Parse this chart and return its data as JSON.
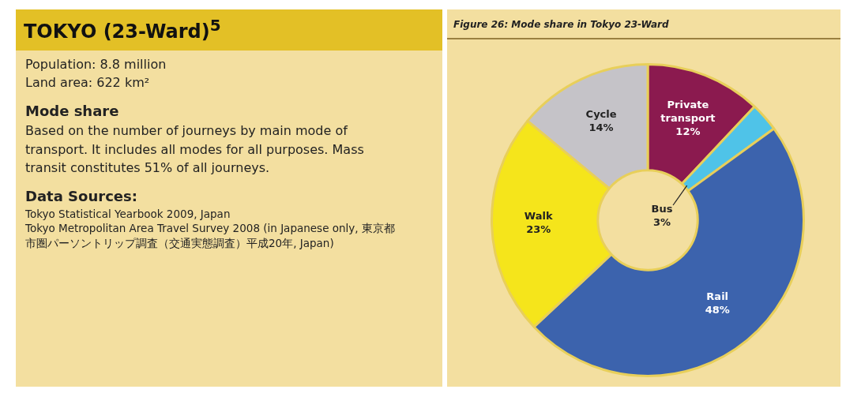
{
  "chart_data": [
    {
      "type": "other",
      "title": "TOKYO (23-Ward)$^{5}$",
      "annotations": [
        "Population: 8.8  million",
        "Land area: 622 km²",
        "Mode share",
        "Based on the number of journeys by main mode of transport. It includes all modes for all purposes. Mass transit constitutes 51% of all journeys.",
        "Data Sources:",
        "Tokyo Statistical Yearbook 2009, Japan",
        "Tokyo Metropolitan Area Travel Survey 2008 (in Japanese only, 東京都市圏パーソントリップ調査（交通実態調査）平成20年, Japan)"
      ]
    },
    {
      "type": "donut",
      "title": "Figure 26: Mode share in Tokyo 23-Ward",
      "categories": [
        "Private transport",
        "Bus",
        "Rail",
        "Walk",
        "Cycle"
      ],
      "values": [
        12,
        3,
        48,
        23,
        14
      ],
      "value_labels": [
        "12%",
        "3%",
        "48%",
        "23%",
        "14%"
      ],
      "colors": [
        "#8b1a4f",
        "#4fc3e8",
        "#3c63ad",
        "#f5e51b",
        "#c5c3c8"
      ],
      "legend": false
    }
  ]
}
